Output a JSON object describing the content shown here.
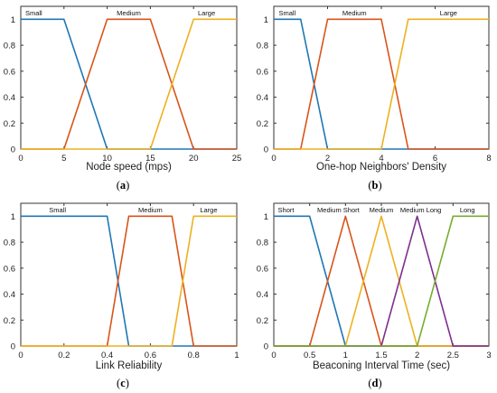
{
  "colors": {
    "blue": "#1f77b4",
    "orange": "#d9541a",
    "yellow": "#edb120",
    "purple": "#7e2f8e",
    "green": "#77ac30"
  },
  "chart_data": [
    {
      "type": "line",
      "panel_label": "(a)",
      "xlabel": "Node speed (mps)",
      "ylabel": "",
      "xlim": [
        0,
        25
      ],
      "ylim": [
        0,
        1.1
      ],
      "xticks": [
        "0",
        "5",
        "10",
        "15",
        "20",
        "25"
      ],
      "yticks": [
        "0",
        "0.2",
        "0.4",
        "0.6",
        "0.8",
        "1"
      ],
      "series": [
        {
          "name": "Small",
          "color": "blue",
          "x": [
            0,
            5,
            10,
            15,
            25
          ],
          "y": [
            1,
            1,
            0,
            0,
            0
          ]
        },
        {
          "name": "Medium",
          "color": "orange",
          "x": [
            0,
            5,
            10,
            15,
            20,
            25
          ],
          "y": [
            0,
            0,
            1,
            1,
            0,
            0
          ]
        },
        {
          "name": "Large",
          "color": "yellow",
          "x": [
            0,
            15,
            20,
            25
          ],
          "y": [
            0,
            0,
            1,
            1
          ]
        }
      ],
      "labels": [
        {
          "text": "Small",
          "x": 1.5
        },
        {
          "text": "Medium",
          "x": 12.5
        },
        {
          "text": "Large",
          "x": 21.5
        }
      ]
    },
    {
      "type": "line",
      "panel_label": "(b)",
      "xlabel": "One-hop Neighbors' Density",
      "ylabel": "",
      "xlim": [
        0,
        8
      ],
      "ylim": [
        0,
        1.1
      ],
      "xticks": [
        "0",
        "2",
        "4",
        "6",
        "8"
      ],
      "yticks": [
        "0",
        "0.2",
        "0.4",
        "0.6",
        "0.8",
        "1"
      ],
      "series": [
        {
          "name": "Small",
          "color": "blue",
          "x": [
            0,
            1,
            2,
            4,
            8
          ],
          "y": [
            1,
            1,
            0,
            0,
            0
          ]
        },
        {
          "name": "Medium",
          "color": "orange",
          "x": [
            0,
            1,
            2,
            4,
            5,
            8
          ],
          "y": [
            0,
            0,
            1,
            1,
            0,
            0
          ]
        },
        {
          "name": "Large",
          "color": "yellow",
          "x": [
            0,
            4,
            5,
            8
          ],
          "y": [
            0,
            0,
            1,
            1
          ]
        }
      ],
      "labels": [
        {
          "text": "Small",
          "x": 0.5
        },
        {
          "text": "Medium",
          "x": 3.0
        },
        {
          "text": "Large",
          "x": 6.5
        }
      ]
    },
    {
      "type": "line",
      "panel_label": "(c)",
      "xlabel": "Link Reliability",
      "ylabel": "",
      "xlim": [
        0,
        1
      ],
      "ylim": [
        0,
        1.1
      ],
      "xticks": [
        "0",
        "0.2",
        "0.4",
        "0.6",
        "0.8",
        "1"
      ],
      "yticks": [
        "0",
        "0.2",
        "0.4",
        "0.6",
        "0.8",
        "1"
      ],
      "series": [
        {
          "name": "Small",
          "color": "blue",
          "x": [
            0,
            0.4,
            0.5,
            0.7,
            1
          ],
          "y": [
            1,
            1,
            0,
            0,
            0
          ]
        },
        {
          "name": "Medium",
          "color": "orange",
          "x": [
            0,
            0.4,
            0.5,
            0.7,
            0.8,
            1
          ],
          "y": [
            0,
            0,
            1,
            1,
            0,
            0
          ]
        },
        {
          "name": "Large",
          "color": "yellow",
          "x": [
            0,
            0.7,
            0.8,
            1
          ],
          "y": [
            0,
            0,
            1,
            1
          ]
        }
      ],
      "labels": [
        {
          "text": "Small",
          "x": 0.17
        },
        {
          "text": "Medium",
          "x": 0.6
        },
        {
          "text": "Large",
          "x": 0.87
        }
      ]
    },
    {
      "type": "line",
      "panel_label": "(d)",
      "xlabel": "Beaconing Interval Time (sec)",
      "ylabel": "",
      "xlim": [
        0,
        3
      ],
      "ylim": [
        0,
        1.1
      ],
      "xticks": [
        "0",
        "0.5",
        "1",
        "1.5",
        "2",
        "2.5",
        "3"
      ],
      "yticks": [
        "0",
        "0.2",
        "0.4",
        "0.6",
        "0.8",
        "1"
      ],
      "series": [
        {
          "name": "Short",
          "color": "blue",
          "x": [
            0,
            0.5,
            1,
            3
          ],
          "y": [
            1,
            1,
            0,
            0
          ]
        },
        {
          "name": "Medium Short",
          "color": "orange",
          "x": [
            0,
            0.5,
            1,
            1.5,
            3
          ],
          "y": [
            0,
            0,
            1,
            0,
            0
          ]
        },
        {
          "name": "Medium",
          "color": "yellow",
          "x": [
            0,
            1,
            1.5,
            2,
            3
          ],
          "y": [
            0,
            0,
            1,
            0,
            0
          ]
        },
        {
          "name": "Medium Long",
          "color": "purple",
          "x": [
            0,
            1.5,
            2,
            2.5,
            3
          ],
          "y": [
            0,
            0,
            1,
            0,
            0
          ]
        },
        {
          "name": "Long",
          "color": "green",
          "x": [
            0,
            2,
            2.5,
            3
          ],
          "y": [
            0,
            0,
            1,
            1
          ]
        }
      ],
      "labels": [
        {
          "text": "Short",
          "x": 0.17
        },
        {
          "text": "Medium Short",
          "x": 0.9
        },
        {
          "text": "Medium",
          "x": 1.5
        },
        {
          "text": "Medium Long",
          "x": 2.05
        },
        {
          "text": "Long",
          "x": 2.7
        }
      ]
    }
  ]
}
